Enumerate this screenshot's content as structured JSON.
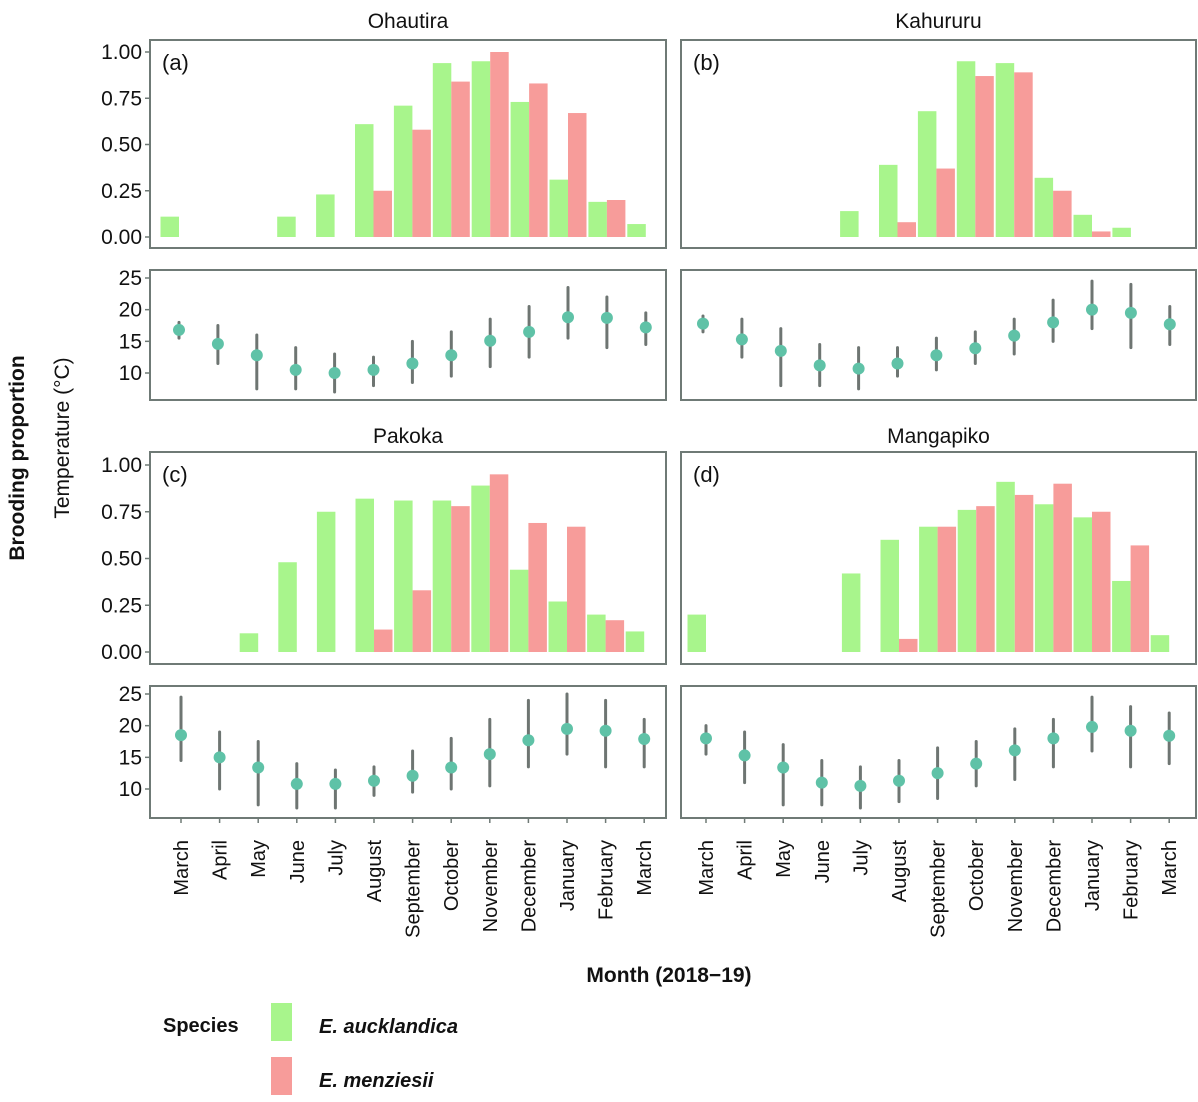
{
  "colors": {
    "auck": "#a8f58c",
    "menz": "#f79c9a",
    "temp": "#5fc2a7",
    "whisker": "#555e5a",
    "frame": "#6f7a76"
  },
  "labels": {
    "y_brooding": "Brooding proportion",
    "y_temp": "Temperature (°C)",
    "x_axis": "Month (2018−19)",
    "legend_title": "Species",
    "species": [
      "E. aucklandica",
      "E. menziesii"
    ]
  },
  "chart_data": {
    "type": "bar",
    "months": [
      "March",
      "April",
      "May",
      "June",
      "July",
      "August",
      "September",
      "October",
      "November",
      "December",
      "January",
      "February",
      "March"
    ],
    "brood_ticks": [
      "0.00",
      "0.25",
      "0.50",
      "0.75",
      "1.00"
    ],
    "brood_ylim": [
      0,
      1
    ],
    "temp_ticks": [
      "10",
      "15",
      "20",
      "25"
    ],
    "temp_ylim": [
      5,
      26
    ],
    "panels": [
      {
        "site": "Ohautira",
        "letter": "a",
        "series": [
          {
            "name": "E. aucklandica",
            "values": [
              0.11,
              0,
              0,
              0.11,
              0.23,
              0.61,
              0.71,
              0.94,
              0.95,
              0.73,
              0.31,
              0.19,
              0.07
            ]
          },
          {
            "name": "E. menziesii",
            "values": [
              0,
              0,
              0,
              0,
              0,
              0.25,
              0.58,
              0.84,
              1.0,
              0.83,
              0.67,
              0.2,
              0
            ]
          }
        ],
        "temperature": {
          "mean": [
            16.8,
            14.6,
            12.8,
            10.5,
            10.0,
            10.5,
            11.5,
            12.8,
            15.1,
            16.5,
            18.8,
            18.7,
            17.2
          ],
          "low": [
            15.5,
            11.5,
            7.5,
            7.5,
            7.0,
            8.0,
            8.5,
            9.5,
            11.0,
            12.5,
            15.5,
            14.0,
            14.5
          ],
          "high": [
            18.0,
            17.5,
            16.0,
            14.0,
            13.0,
            12.5,
            15.0,
            16.5,
            18.5,
            20.5,
            23.5,
            22.0,
            19.5
          ]
        }
      },
      {
        "site": "Kahururu",
        "letter": "b",
        "series": [
          {
            "name": "E. aucklandica",
            "values": [
              0,
              0,
              0,
              0,
              0.14,
              0.39,
              0.68,
              0.95,
              0.94,
              0.32,
              0.12,
              0.05,
              0
            ]
          },
          {
            "name": "E. menziesii",
            "values": [
              0,
              0,
              0,
              0,
              0,
              0.08,
              0.37,
              0.87,
              0.89,
              0.25,
              0.03,
              0,
              0
            ]
          }
        ],
        "temperature": {
          "mean": [
            17.8,
            15.3,
            13.5,
            11.2,
            10.7,
            11.5,
            12.8,
            13.9,
            15.9,
            18.0,
            20.0,
            19.5,
            17.7
          ],
          "low": [
            16.5,
            12.5,
            8.0,
            8.0,
            7.5,
            9.5,
            10.5,
            11.5,
            13.0,
            15.0,
            17.0,
            14.0,
            14.5
          ],
          "high": [
            19.0,
            18.5,
            17.0,
            14.5,
            14.0,
            14.0,
            15.5,
            16.5,
            18.5,
            21.5,
            24.5,
            24.0,
            20.5
          ]
        }
      },
      {
        "site": "Pakoka",
        "letter": "c",
        "series": [
          {
            "name": "E. aucklandica",
            "values": [
              0,
              0,
              0.1,
              0.48,
              0.75,
              0.82,
              0.81,
              0.81,
              0.89,
              0.44,
              0.27,
              0.2,
              0.11
            ]
          },
          {
            "name": "E. menziesii",
            "values": [
              0,
              0,
              0,
              0,
              0,
              0.12,
              0.33,
              0.78,
              0.95,
              0.69,
              0.67,
              0.17,
              0
            ]
          }
        ],
        "temperature": {
          "mean": [
            18.5,
            15.0,
            13.4,
            10.8,
            10.8,
            11.3,
            12.1,
            13.4,
            15.5,
            17.7,
            19.5,
            19.2,
            17.9
          ],
          "low": [
            14.5,
            10.0,
            7.5,
            7.0,
            7.0,
            9.0,
            9.5,
            10.0,
            10.5,
            13.5,
            15.5,
            13.5,
            13.5
          ],
          "high": [
            24.5,
            19.0,
            17.5,
            14.0,
            13.0,
            13.5,
            16.0,
            18.0,
            21.0,
            24.0,
            25.0,
            24.0,
            21.0
          ]
        }
      },
      {
        "site": "Mangapiko",
        "letter": "d",
        "series": [
          {
            "name": "E. aucklandica",
            "values": [
              0.2,
              0,
              0,
              0,
              0.42,
              0.6,
              0.67,
              0.76,
              0.91,
              0.79,
              0.72,
              0.38,
              0.09
            ]
          },
          {
            "name": "E. menziesii",
            "values": [
              0,
              0,
              0,
              0,
              0,
              0.07,
              0.67,
              0.78,
              0.84,
              0.9,
              0.75,
              0.57,
              0
            ]
          }
        ],
        "temperature": {
          "mean": [
            18.0,
            15.3,
            13.4,
            11.0,
            10.5,
            11.3,
            12.5,
            14.0,
            16.1,
            18.0,
            19.8,
            19.2,
            18.4
          ],
          "low": [
            15.5,
            11.0,
            7.5,
            7.5,
            7.0,
            8.0,
            8.5,
            10.5,
            11.5,
            13.5,
            16.0,
            13.5,
            14.0
          ],
          "high": [
            20.0,
            19.0,
            17.0,
            14.5,
            13.5,
            14.5,
            16.5,
            17.5,
            19.5,
            21.0,
            24.5,
            23.0,
            22.0
          ]
        }
      }
    ]
  }
}
